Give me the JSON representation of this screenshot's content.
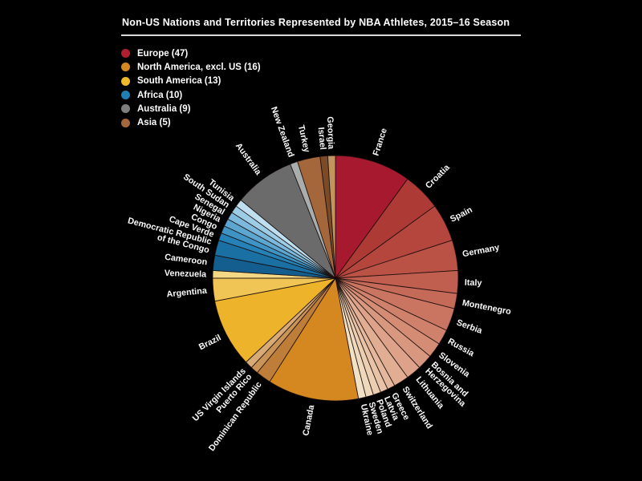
{
  "title": "Non-US Nations and Territories Represented by NBA Athletes, 2015–16 Season",
  "legend": [
    {
      "label": "Europe (47)",
      "color": "#B11E2D"
    },
    {
      "label": "North America, excl. US (16)",
      "color": "#D4881F"
    },
    {
      "label": "South America (13)",
      "color": "#EFB929"
    },
    {
      "label": "Africa (10)",
      "color": "#1F7EB2"
    },
    {
      "label": "Australia (9)",
      "color": "#7D7D7D"
    },
    {
      "label": "Asia (5)",
      "color": "#A4673C"
    }
  ],
  "chart_data": {
    "type": "pie",
    "title": "Non-US Nations and Territories Represented by NBA Athletes, 2015–16 Season",
    "total_athletes": 100,
    "start_angle_deg": 0,
    "direction": "clockwise",
    "center": [
      418,
      347
    ],
    "radius": 153,
    "label_radius": 161,
    "groups": [
      {
        "name": "Europe",
        "count": 47
      },
      {
        "name": "North America, excl. US",
        "count": 16
      },
      {
        "name": "South America",
        "count": 13
      },
      {
        "name": "Africa",
        "count": 10
      },
      {
        "name": "Australia",
        "count": 9
      },
      {
        "name": "Asia",
        "count": 5
      }
    ],
    "slices": [
      {
        "name": "France",
        "value": 10,
        "group": "Europe",
        "color": "#A6192E"
      },
      {
        "name": "Croatia",
        "value": 5,
        "group": "Europe",
        "color": "#AE3A36"
      },
      {
        "name": "Spain",
        "value": 5,
        "group": "Europe",
        "color": "#B4463E"
      },
      {
        "name": "Germany",
        "value": 4,
        "group": "Europe",
        "color": "#BA5246"
      },
      {
        "name": "Italy",
        "value": 3,
        "group": "Europe",
        "color": "#C05E4F"
      },
      {
        "name": "Montenegro",
        "value": 2,
        "group": "Europe",
        "color": "#C56A58"
      },
      {
        "name": "Serbia",
        "value": 3,
        "group": "Europe",
        "color": "#CA7562"
      },
      {
        "name": "Russia",
        "value": 2,
        "group": "Europe",
        "color": "#CF816C"
      },
      {
        "name": "Slovenia",
        "value": 2,
        "group": "Europe",
        "color": "#D48C75"
      },
      {
        "name": "Bosnia and Herzegovina",
        "value": 2,
        "group": "Europe",
        "color": "#D8977F",
        "label_lines": [
          "Bosnia and",
          "Herzegovina"
        ]
      },
      {
        "name": "Lithuania",
        "value": 2,
        "group": "Europe",
        "color": "#DDA289"
      },
      {
        "name": "Switzerland",
        "value": 2,
        "group": "Europe",
        "color": "#E1AD93"
      },
      {
        "name": "Greece",
        "value": 1,
        "group": "Europe",
        "color": "#E5B89D"
      },
      {
        "name": "Latvia",
        "value": 1,
        "group": "Europe",
        "color": "#E9C3A7"
      },
      {
        "name": "Poland",
        "value": 1,
        "group": "Europe",
        "color": "#ECCEB1"
      },
      {
        "name": "Sweden",
        "value": 1,
        "group": "Europe",
        "color": "#EFD8BB"
      },
      {
        "name": "Ukraine",
        "value": 1,
        "group": "Europe",
        "color": "#F2E1C6"
      },
      {
        "name": "Canada",
        "value": 12,
        "group": "North America, excl. US",
        "color": "#D4881F"
      },
      {
        "name": "Dominican Republic",
        "value": 2,
        "group": "North America, excl. US",
        "color": "#BE7E3A"
      },
      {
        "name": "Puerto Rico",
        "value": 1,
        "group": "North America, excl. US",
        "color": "#CA9458"
      },
      {
        "name": "US Virgin Islands",
        "value": 1,
        "group": "North America, excl. US",
        "color": "#D7AA76"
      },
      {
        "name": "Brazil",
        "value": 9,
        "group": "South America",
        "color": "#EDB32A"
      },
      {
        "name": "Argentina",
        "value": 3,
        "group": "South America",
        "color": "#F0C455"
      },
      {
        "name": "Venezuela",
        "value": 1,
        "group": "South America",
        "color": "#F5D884"
      },
      {
        "name": "Cameroon",
        "value": 2,
        "group": "Africa",
        "color": "#135E8E"
      },
      {
        "name": "Democratic Republic of the Congo",
        "value": 2,
        "group": "Africa",
        "color": "#1A6FA3",
        "label_lines": [
          "Democratic Republic",
          "of the Congo"
        ]
      },
      {
        "name": "Cape Verde",
        "value": 1,
        "group": "Africa",
        "color": "#2581B6"
      },
      {
        "name": "Congo",
        "value": 1,
        "group": "Africa",
        "color": "#3F94C5"
      },
      {
        "name": "Nigeria",
        "value": 1,
        "group": "Africa",
        "color": "#5CA6D0"
      },
      {
        "name": "Senegal",
        "value": 1,
        "group": "Africa",
        "color": "#7CB9DC"
      },
      {
        "name": "South Sudan",
        "value": 1,
        "group": "Africa",
        "color": "#9DCCE7"
      },
      {
        "name": "Tunisia",
        "value": 1,
        "group": "Africa",
        "color": "#BFDFF0"
      },
      {
        "name": "Australia",
        "value": 8,
        "group": "Australia",
        "color": "#6B6B6B"
      },
      {
        "name": "New Zealand",
        "value": 1,
        "group": "Australia",
        "color": "#A9ADAE"
      },
      {
        "name": "Turkey",
        "value": 3,
        "group": "Asia",
        "color": "#A4673C"
      },
      {
        "name": "Israel",
        "value": 1,
        "group": "Asia",
        "color": "#7B4B27"
      },
      {
        "name": "Georgia",
        "value": 1,
        "group": "Asia",
        "color": "#C2945F"
      }
    ]
  }
}
